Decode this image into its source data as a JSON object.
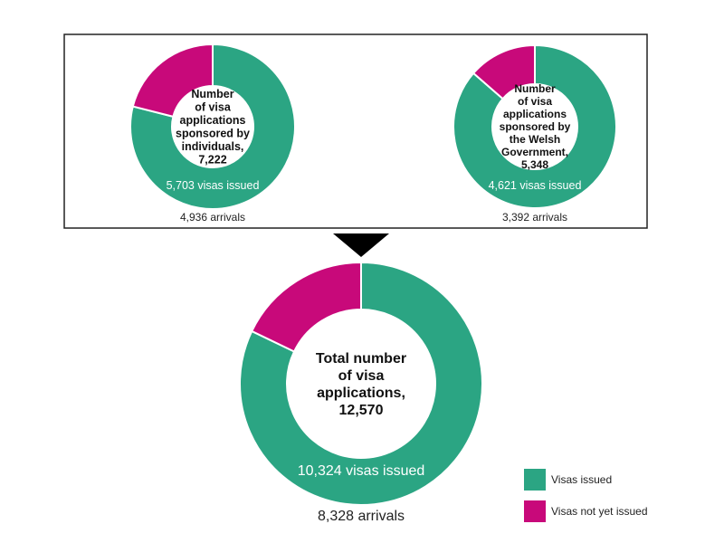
{
  "colors": {
    "issued": "#2BA583",
    "not_issued": "#C8097A"
  },
  "chart_data": [
    {
      "type": "pie",
      "id": "individuals",
      "center_label": [
        "Number",
        "of visa",
        "applications",
        "sponsored by",
        "individuals,",
        "7,222"
      ],
      "total": 7222,
      "slices": [
        {
          "name": "Visas issued",
          "value": 5703
        },
        {
          "name": "Visas not yet issued",
          "value": 1519
        }
      ],
      "issued_label": "5,703 visas issued",
      "arrivals_label": "4,936 arrivals"
    },
    {
      "type": "pie",
      "id": "welsh",
      "center_label": [
        "Number",
        "of visa",
        "applications",
        "sponsored by",
        "the Welsh",
        "Government,",
        "5,348"
      ],
      "total": 5348,
      "slices": [
        {
          "name": "Visas issued",
          "value": 4621
        },
        {
          "name": "Visas not yet issued",
          "value": 727
        }
      ],
      "issued_label": "4,621 visas issued",
      "arrivals_label": "3,392 arrivals"
    },
    {
      "type": "pie",
      "id": "total",
      "center_label": [
        "Total number",
        "of visa",
        "applications,",
        "12,570"
      ],
      "total": 12570,
      "slices": [
        {
          "name": "Visas issued",
          "value": 10324
        },
        {
          "name": "Visas not yet issued",
          "value": 2246
        }
      ],
      "issued_label": "10,324 visas issued",
      "arrivals_label": "8,328 arrivals"
    }
  ],
  "legend": [
    {
      "label": "Visas issued",
      "key": "issued"
    },
    {
      "label": "Visas not yet issued",
      "key": "not_issued"
    }
  ]
}
